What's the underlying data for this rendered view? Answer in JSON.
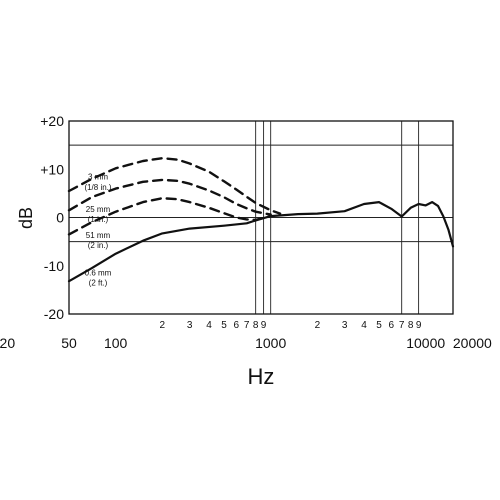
{
  "chart_data": {
    "type": "line",
    "xlabel": "Hz",
    "ylabel": "dB",
    "xscale": "log",
    "xlim": [
      50,
      15000
    ],
    "ylim": [
      -20,
      20
    ],
    "grid": true,
    "x_tick_labels": [
      {
        "x": 20,
        "label": "20"
      },
      {
        "x": 50,
        "label": "50"
      },
      {
        "x": 100,
        "label": "100"
      },
      {
        "x": 1000,
        "label": "1000"
      },
      {
        "x": 10000,
        "label": "10000"
      },
      {
        "x": 20000,
        "label": "20000"
      }
    ],
    "x_minor_labels": [
      {
        "x": 200,
        "label": "2"
      },
      {
        "x": 300,
        "label": "3"
      },
      {
        "x": 400,
        "label": "4"
      },
      {
        "x": 500,
        "label": "5"
      },
      {
        "x": 600,
        "label": "6"
      },
      {
        "x": 700,
        "label": "7"
      },
      {
        "x": 800,
        "label": "8"
      },
      {
        "x": 900,
        "label": "9"
      },
      {
        "x": 2000,
        "label": "2"
      },
      {
        "x": 3000,
        "label": "3"
      },
      {
        "x": 4000,
        "label": "4"
      },
      {
        "x": 5000,
        "label": "5"
      },
      {
        "x": 6000,
        "label": "6"
      },
      {
        "x": 7000,
        "label": "7"
      },
      {
        "x": 8000,
        "label": "8"
      },
      {
        "x": 9000,
        "label": "9"
      }
    ],
    "y_tick_labels": [
      {
        "y": 20,
        "label": "+20"
      },
      {
        "y": 10,
        "label": "+10"
      },
      {
        "y": 0,
        "label": "0"
      },
      {
        "y": -10,
        "label": "-10"
      },
      {
        "y": -20,
        "label": "-20"
      }
    ],
    "vertical_gridlines": [
      50,
      800,
      900,
      1000,
      7000,
      9000
    ],
    "horizontal_gridlines": [
      15,
      0,
      -5
    ],
    "series": [
      {
        "name": "3 mm (1/8 in.)",
        "style": "dashed",
        "points": [
          [
            50,
            5.5
          ],
          [
            70,
            8
          ],
          [
            100,
            10.2
          ],
          [
            150,
            11.7
          ],
          [
            200,
            12.3
          ],
          [
            250,
            12.0
          ],
          [
            300,
            11.2
          ],
          [
            400,
            9.5
          ],
          [
            500,
            7.5
          ],
          [
            600,
            5.8
          ],
          [
            700,
            4.3
          ],
          [
            800,
            3.0
          ],
          [
            1000,
            1.5
          ],
          [
            1150,
            0.8
          ]
        ]
      },
      {
        "name": "25 mm (1 in.)",
        "style": "dashed",
        "points": [
          [
            50,
            1.5
          ],
          [
            70,
            4.2
          ],
          [
            100,
            6.0
          ],
          [
            150,
            7.4
          ],
          [
            200,
            7.8
          ],
          [
            250,
            7.6
          ],
          [
            300,
            7.0
          ],
          [
            400,
            5.6
          ],
          [
            500,
            4.2
          ],
          [
            600,
            2.8
          ],
          [
            700,
            1.9
          ],
          [
            800,
            1.2
          ],
          [
            1000,
            0.6
          ]
        ]
      },
      {
        "name": "51 mm (2 in.)",
        "style": "dashed",
        "points": [
          [
            50,
            -3.5
          ],
          [
            70,
            -1.0
          ],
          [
            100,
            1.2
          ],
          [
            150,
            3.2
          ],
          [
            200,
            4.0
          ],
          [
            250,
            3.8
          ],
          [
            300,
            3.2
          ],
          [
            400,
            2.0
          ],
          [
            500,
            0.9
          ],
          [
            600,
            0.0
          ],
          [
            700,
            -0.4
          ],
          [
            800,
            -0.5
          ],
          [
            1000,
            0.3
          ]
        ]
      },
      {
        "name": "0.6 mm (2 ft.)",
        "style": "solid",
        "points": [
          [
            50,
            -13.2
          ],
          [
            70,
            -10.5
          ],
          [
            100,
            -7.5
          ],
          [
            150,
            -4.8
          ],
          [
            200,
            -3.3
          ],
          [
            300,
            -2.3
          ],
          [
            500,
            -1.7
          ],
          [
            700,
            -1.2
          ],
          [
            800,
            -0.6
          ],
          [
            1000,
            0.3
          ],
          [
            1500,
            0.7
          ],
          [
            2000,
            0.8
          ],
          [
            3000,
            1.3
          ],
          [
            4000,
            2.8
          ],
          [
            5000,
            3.2
          ],
          [
            6000,
            1.8
          ],
          [
            7000,
            0.2
          ],
          [
            8000,
            2.0
          ],
          [
            9000,
            2.8
          ],
          [
            10000,
            2.5
          ],
          [
            11000,
            3.2
          ],
          [
            12000,
            2.4
          ],
          [
            13000,
            0.2
          ],
          [
            14000,
            -2.5
          ],
          [
            15000,
            -6.0
          ]
        ]
      }
    ],
    "annotations": [
      {
        "text": "3 mm",
        "x": 52,
        "y": 8.5
      },
      {
        "text": "(1/8 in.)",
        "x": 52,
        "y": 6.3
      },
      {
        "text": "25 mm",
        "x": 52,
        "y": 1.8
      },
      {
        "text": "(1 in.)",
        "x": 52,
        "y": -0.3
      },
      {
        "text": "51 mm",
        "x": 52,
        "y": -3.6
      },
      {
        "text": "(2 in.)",
        "x": 52,
        "y": -5.7
      },
      {
        "text": "0.6 mm",
        "x": 52,
        "y": -11.4
      },
      {
        "text": "(2 ft.)",
        "x": 52,
        "y": -13.5
      }
    ]
  }
}
